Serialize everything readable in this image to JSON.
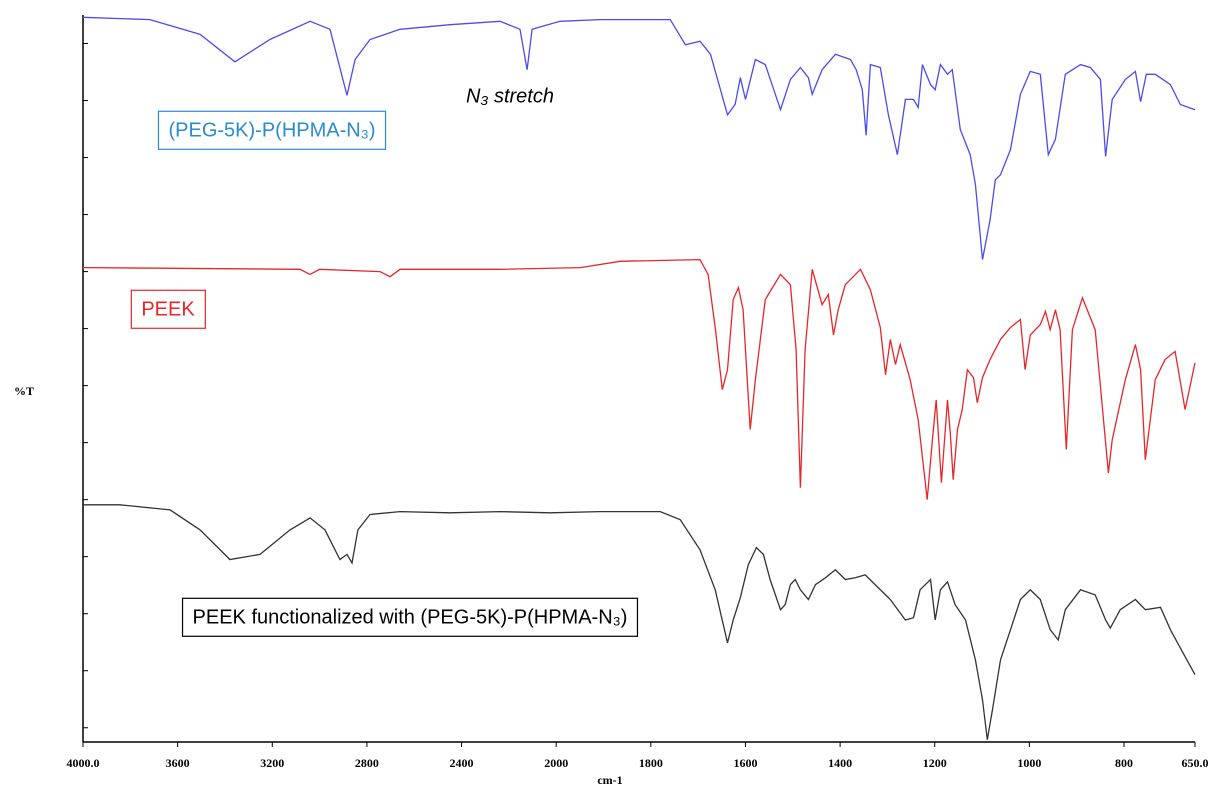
{
  "chart_data": {
    "type": "line",
    "x_label": "cm-1",
    "y_label": "%T",
    "xlim": [
      4000,
      650
    ],
    "x_scale_break": 2000,
    "xticks": [
      {
        "value": 4000,
        "label": "4000.0"
      },
      3600,
      3200,
      2800,
      2400,
      2000,
      1800,
      1600,
      1400,
      1200,
      1000,
      800,
      {
        "value": 650,
        "label": "650.0"
      }
    ],
    "ylim": [
      -0.25,
      12.5
    ],
    "yticks": [
      0,
      1,
      2,
      3,
      4,
      5,
      6,
      7,
      8,
      9,
      10,
      11,
      12
    ],
    "annotation": "N₃ stretch",
    "series": [
      {
        "name": "(PEG-5K)-P(HPMA-N₃)",
        "color": "#4b4bf0",
        "label_color": "#2a8ad4",
        "x": [
          4000,
          3717,
          3505,
          3358,
          3210,
          3040,
          2956,
          2884,
          2850,
          2787,
          2660,
          2449,
          2237,
          2153,
          2123,
          2102,
          1992,
          1907,
          1759,
          1727,
          1696,
          1674,
          1638,
          1622,
          1611,
          1600,
          1579,
          1558,
          1526,
          1505,
          1484,
          1467,
          1459,
          1438,
          1410,
          1378,
          1366,
          1353,
          1345,
          1336,
          1315,
          1298,
          1279,
          1262,
          1245,
          1235,
          1226,
          1209,
          1199,
          1188,
          1173,
          1163,
          1146,
          1125,
          1114,
          1099,
          1083,
          1072,
          1061,
          1040,
          1019,
          998,
          977,
          960,
          945,
          924,
          892,
          871,
          850,
          839,
          825,
          797,
          776,
          765,
          753,
          734,
          702,
          681,
          650
        ],
        "values": [
          12.46,
          12.42,
          12.16,
          11.68,
          12.07,
          12.39,
          12.25,
          11.09,
          11.72,
          12.07,
          12.25,
          12.33,
          12.39,
          12.25,
          11.54,
          12.25,
          12.39,
          12.42,
          12.42,
          11.98,
          12.04,
          11.81,
          10.75,
          10.93,
          11.4,
          11.02,
          11.72,
          11.63,
          10.84,
          11.37,
          11.58,
          11.4,
          11.11,
          11.54,
          11.81,
          11.72,
          11.54,
          11.19,
          10.39,
          11.63,
          11.58,
          10.75,
          10.05,
          11.02,
          11.02,
          10.88,
          11.63,
          11.28,
          11.19,
          11.63,
          11.46,
          11.54,
          10.49,
          10.05,
          9.53,
          8.21,
          8.91,
          9.61,
          9.7,
          10.14,
          11.11,
          11.51,
          11.46,
          10.05,
          10.32,
          11.46,
          11.63,
          11.58,
          11.37,
          10.02,
          11.02,
          11.37,
          11.51,
          10.98,
          11.46,
          11.46,
          11.28,
          10.93,
          10.84
        ]
      },
      {
        "name": "PEEK",
        "color": "#e8262a",
        "label_color": "#e8262a",
        "x": [
          4000,
          3083,
          3040,
          3000,
          2745,
          2702,
          2660,
          2237,
          1949,
          1865,
          1696,
          1679,
          1664,
          1649,
          1638,
          1626,
          1615,
          1605,
          1590,
          1579,
          1558,
          1526,
          1505,
          1493,
          1484,
          1474,
          1459,
          1438,
          1425,
          1414,
          1404,
          1389,
          1357,
          1336,
          1315,
          1304,
          1294,
          1283,
          1273,
          1252,
          1235,
          1216,
          1205,
          1197,
          1186,
          1173,
          1167,
          1161,
          1152,
          1142,
          1131,
          1118,
          1110,
          1099,
          1083,
          1061,
          1040,
          1019,
          1009,
          998,
          977,
          966,
          956,
          945,
          935,
          922,
          909,
          888,
          861,
          833,
          825,
          797,
          776,
          765,
          755,
          734,
          713,
          692,
          671,
          650
        ],
        "values": [
          8.07,
          8.04,
          7.95,
          8.04,
          8.0,
          7.91,
          8.04,
          8.04,
          8.07,
          8.18,
          8.21,
          7.95,
          7.02,
          5.93,
          6.28,
          7.51,
          7.72,
          7.33,
          5.23,
          6.11,
          7.51,
          7.95,
          7.77,
          6.63,
          4.21,
          6.63,
          8.04,
          7.42,
          7.6,
          6.89,
          7.33,
          7.77,
          8.04,
          7.68,
          7.02,
          6.19,
          6.81,
          6.37,
          6.72,
          6.11,
          5.4,
          4.0,
          5.05,
          5.75,
          4.3,
          5.75,
          5.14,
          4.35,
          5.23,
          5.58,
          6.28,
          6.14,
          5.7,
          6.14,
          6.46,
          6.81,
          7.02,
          7.16,
          6.28,
          6.89,
          7.07,
          7.3,
          6.98,
          7.33,
          6.98,
          4.88,
          6.98,
          7.54,
          6.98,
          4.47,
          5.05,
          6.11,
          6.72,
          6.28,
          4.7,
          6.11,
          6.46,
          6.6,
          5.58,
          6.4
        ]
      },
      {
        "name": "PEEK functionalized with (PEG-5K)-P(HPMA-N₃)",
        "color": "#333333",
        "label_color": "#000000",
        "x": [
          4000,
          3844,
          3632,
          3505,
          3379,
          3252,
          3125,
          3040,
          2977,
          2914,
          2884,
          2863,
          2838,
          2787,
          2660,
          2449,
          2237,
          2026,
          1907,
          1780,
          1738,
          1696,
          1664,
          1638,
          1626,
          1611,
          1594,
          1577,
          1562,
          1548,
          1526,
          1516,
          1505,
          1495,
          1484,
          1467,
          1452,
          1431,
          1410,
          1389,
          1368,
          1347,
          1326,
          1294,
          1262,
          1245,
          1231,
          1209,
          1199,
          1188,
          1173,
          1157,
          1135,
          1114,
          1099,
          1089,
          1078,
          1061,
          1040,
          1019,
          998,
          977,
          956,
          939,
          924,
          892,
          861,
          839,
          829,
          808,
          776,
          755,
          723,
          702,
          681,
          650
        ],
        "values": [
          3.91,
          3.91,
          3.82,
          3.47,
          2.95,
          3.04,
          3.47,
          3.68,
          3.47,
          2.95,
          3.04,
          2.89,
          3.47,
          3.74,
          3.79,
          3.77,
          3.79,
          3.77,
          3.79,
          3.79,
          3.65,
          3.12,
          2.42,
          1.49,
          1.89,
          2.28,
          2.86,
          3.16,
          3.04,
          2.6,
          2.07,
          2.16,
          2.51,
          2.6,
          2.42,
          2.25,
          2.51,
          2.63,
          2.77,
          2.6,
          2.63,
          2.68,
          2.51,
          2.25,
          1.89,
          1.93,
          2.42,
          2.6,
          1.89,
          2.42,
          2.56,
          2.16,
          1.89,
          1.19,
          0.49,
          -0.21,
          0.32,
          1.19,
          1.72,
          2.25,
          2.42,
          2.25,
          1.72,
          1.54,
          2.07,
          2.42,
          2.33,
          1.89,
          1.75,
          2.07,
          2.25,
          2.07,
          2.11,
          1.72,
          1.4,
          0.93
        ]
      }
    ]
  }
}
